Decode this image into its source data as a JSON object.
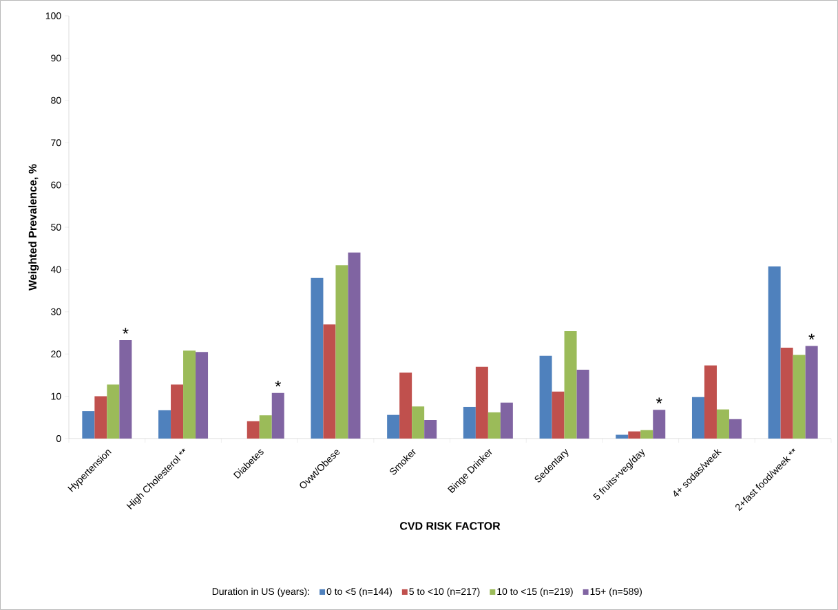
{
  "chart_data": {
    "type": "bar",
    "xlabel": "CVD RISK FACTOR",
    "ylabel": "Weighted Prevalence, %",
    "legend_title": "Duration in US (years):",
    "legend": "bottom",
    "categories": [
      "Hypertension",
      "High Cholesterol  **",
      "Diabetes",
      "Ovwt/Obese",
      "Smoker",
      "Binge Drinker",
      "Sedentary",
      "5 fruits+veg/day",
      "4+ sodas/week",
      "2+fast food/week  **"
    ],
    "series": [
      {
        "name": "0 to <5 (n=144)",
        "color": "#4f81bd",
        "values": [
          6.5,
          6.7,
          null,
          38.0,
          5.6,
          7.5,
          19.6,
          0.9,
          9.8,
          40.7
        ]
      },
      {
        "name": "5 to <10 (n=217)",
        "color": "#c0504d",
        "values": [
          10.0,
          12.8,
          4.1,
          27.0,
          15.6,
          17.0,
          11.1,
          1.7,
          17.3,
          21.5
        ]
      },
      {
        "name": "10 to <15 (n=219)",
        "color": "#9bbb59",
        "values": [
          12.8,
          20.8,
          5.5,
          41.0,
          7.6,
          6.2,
          25.4,
          2.0,
          6.9,
          19.8
        ]
      },
      {
        "name": "15+ (n=589)",
        "color": "#8064a2",
        "values": [
          23.3,
          20.5,
          10.8,
          44.0,
          4.4,
          8.5,
          16.3,
          6.8,
          4.6,
          21.9
        ],
        "value_labels": [
          "*",
          null,
          "*",
          null,
          null,
          null,
          null,
          "*",
          null,
          "*"
        ]
      }
    ],
    "ylim": [
      0,
      100
    ],
    "yticks": [
      0,
      10,
      20,
      30,
      40,
      50,
      60,
      70,
      80,
      90,
      100
    ]
  }
}
